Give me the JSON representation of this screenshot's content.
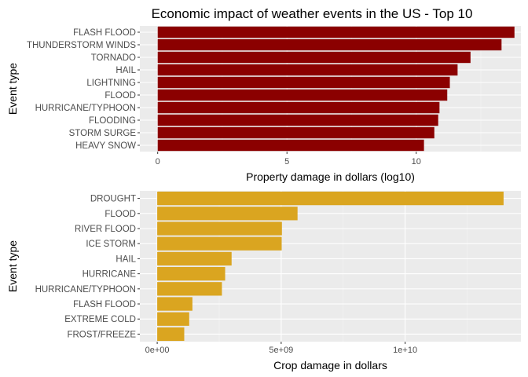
{
  "colors": {
    "panel": "#ebebeb",
    "grid_major": "#ffffff",
    "grid_minor": "#f5f5f5"
  },
  "chart_data": [
    {
      "type": "bar",
      "orientation": "horizontal",
      "title": "Economic impact of weather events in the US - Top 10",
      "xlabel": "Property damage in dollars (log10)",
      "ylabel": "Event type",
      "categories": [
        "FLASH FLOOD",
        "THUNDERSTORM WINDS",
        "TORNADO",
        "HAIL",
        "LIGHTNING",
        "FLOOD",
        "HURRICANE/TYPHOON",
        "FLOODING",
        "STORM SURGE",
        "HEAVY SNOW"
      ],
      "values": [
        13.8,
        13.3,
        12.1,
        11.6,
        11.3,
        11.2,
        10.9,
        10.85,
        10.7,
        10.3
      ],
      "xlim": [
        -0.69,
        14.05
      ],
      "xticks": [
        0,
        5,
        10
      ],
      "xtick_labels": [
        "0",
        "5",
        "10"
      ],
      "bar_color": "#8b0000",
      "grid": true
    },
    {
      "type": "bar",
      "orientation": "horizontal",
      "title": "",
      "xlabel": "Crop damage in dollars",
      "ylabel": "Event type",
      "categories": [
        "DROUGHT",
        "FLOOD",
        "RIVER FLOOD",
        "ICE STORM",
        "HAIL",
        "HURRICANE",
        "HURRICANE/TYPHOON",
        "FLASH FLOOD",
        "EXTREME COLD",
        "FROST/FREEZE"
      ],
      "values": [
        13970000000,
        5660000000,
        5030000000,
        5020000000,
        3000000000,
        2740000000,
        2610000000,
        1420000000,
        1290000000,
        1090000000
      ],
      "xlim": [
        -700000000,
        14670000000
      ],
      "xticks": [
        0,
        5000000000,
        10000000000
      ],
      "xtick_labels": [
        "0e+00",
        "5e+09",
        "1e+10"
      ],
      "bar_color": "#daa520",
      "grid": true
    }
  ]
}
